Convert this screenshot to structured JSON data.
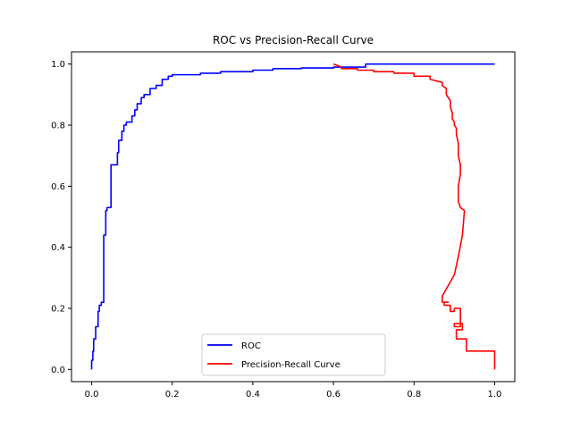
{
  "chart_data": {
    "type": "line",
    "title": "ROC vs Precision-Recall Curve",
    "xlabel": "",
    "ylabel": "",
    "xlim": [
      -0.05,
      1.05
    ],
    "ylim": [
      -0.04,
      1.04
    ],
    "x_ticks": [
      0.0,
      0.2,
      0.4,
      0.6,
      0.8,
      1.0
    ],
    "x_tick_labels": [
      "0.0",
      "0.2",
      "0.4",
      "0.6",
      "0.8",
      "1.0"
    ],
    "y_ticks": [
      0.0,
      0.2,
      0.4,
      0.6,
      0.8,
      1.0
    ],
    "y_tick_labels": [
      "0.0",
      "0.2",
      "0.4",
      "0.6",
      "0.8",
      "1.0"
    ],
    "grid": false,
    "legend_position": "lower-center",
    "series": [
      {
        "name": "ROC",
        "color": "#0000ff",
        "x": [
          0.0,
          0.0,
          0.003,
          0.003,
          0.005,
          0.005,
          0.01,
          0.01,
          0.016,
          0.016,
          0.019,
          0.019,
          0.024,
          0.024,
          0.03,
          0.03,
          0.035,
          0.035,
          0.038,
          0.038,
          0.048,
          0.048,
          0.064,
          0.064,
          0.067,
          0.067,
          0.075,
          0.075,
          0.08,
          0.08,
          0.086,
          0.086,
          0.1,
          0.1,
          0.107,
          0.107,
          0.113,
          0.113,
          0.123,
          0.123,
          0.13,
          0.13,
          0.145,
          0.145,
          0.16,
          0.16,
          0.175,
          0.175,
          0.19,
          0.19,
          0.2,
          0.2,
          0.27,
          0.27,
          0.32,
          0.32,
          0.4,
          0.4,
          0.45,
          0.45,
          0.52,
          0.52,
          0.6,
          0.6,
          0.68,
          0.68,
          1.0
        ],
        "y": [
          0.0,
          0.03,
          0.03,
          0.06,
          0.06,
          0.1,
          0.1,
          0.14,
          0.14,
          0.19,
          0.19,
          0.21,
          0.21,
          0.22,
          0.22,
          0.44,
          0.44,
          0.52,
          0.52,
          0.53,
          0.53,
          0.67,
          0.67,
          0.71,
          0.71,
          0.75,
          0.75,
          0.78,
          0.78,
          0.8,
          0.8,
          0.81,
          0.81,
          0.83,
          0.83,
          0.85,
          0.85,
          0.87,
          0.87,
          0.89,
          0.89,
          0.9,
          0.9,
          0.92,
          0.92,
          0.93,
          0.93,
          0.95,
          0.95,
          0.96,
          0.96,
          0.965,
          0.965,
          0.97,
          0.97,
          0.975,
          0.975,
          0.98,
          0.98,
          0.985,
          0.985,
          0.987,
          0.987,
          0.99,
          0.99,
          1.0,
          1.0
        ]
      },
      {
        "name": "Precision-Recall Curve",
        "color": "#ff0000",
        "x": [
          1.0,
          1.0,
          0.93,
          0.93,
          0.905,
          0.905,
          0.92,
          0.92,
          0.9,
          0.9,
          0.915,
          0.915,
          0.9,
          0.9,
          0.89,
          0.89,
          0.875,
          0.875,
          0.885,
          0.885,
          0.87,
          0.87,
          0.9,
          0.91,
          0.92,
          0.925,
          0.925,
          0.915,
          0.91,
          0.91,
          0.915,
          0.915,
          0.91,
          0.91,
          0.905,
          0.905,
          0.9,
          0.9,
          0.895,
          0.895,
          0.89,
          0.89,
          0.88,
          0.88,
          0.87,
          0.87,
          0.84,
          0.84,
          0.8,
          0.8,
          0.75,
          0.75,
          0.7,
          0.7,
          0.66,
          0.66,
          0.62,
          0.62,
          0.6
        ],
        "y": [
          0.0,
          0.06,
          0.06,
          0.1,
          0.1,
          0.13,
          0.13,
          0.15,
          0.15,
          0.14,
          0.14,
          0.2,
          0.2,
          0.19,
          0.19,
          0.21,
          0.21,
          0.22,
          0.22,
          0.22,
          0.22,
          0.24,
          0.31,
          0.37,
          0.44,
          0.52,
          0.52,
          0.53,
          0.55,
          0.6,
          0.64,
          0.67,
          0.7,
          0.74,
          0.77,
          0.79,
          0.8,
          0.81,
          0.82,
          0.84,
          0.86,
          0.88,
          0.9,
          0.92,
          0.93,
          0.94,
          0.95,
          0.96,
          0.96,
          0.97,
          0.97,
          0.975,
          0.975,
          0.98,
          0.98,
          0.985,
          0.985,
          0.99,
          1.0
        ]
      }
    ]
  }
}
